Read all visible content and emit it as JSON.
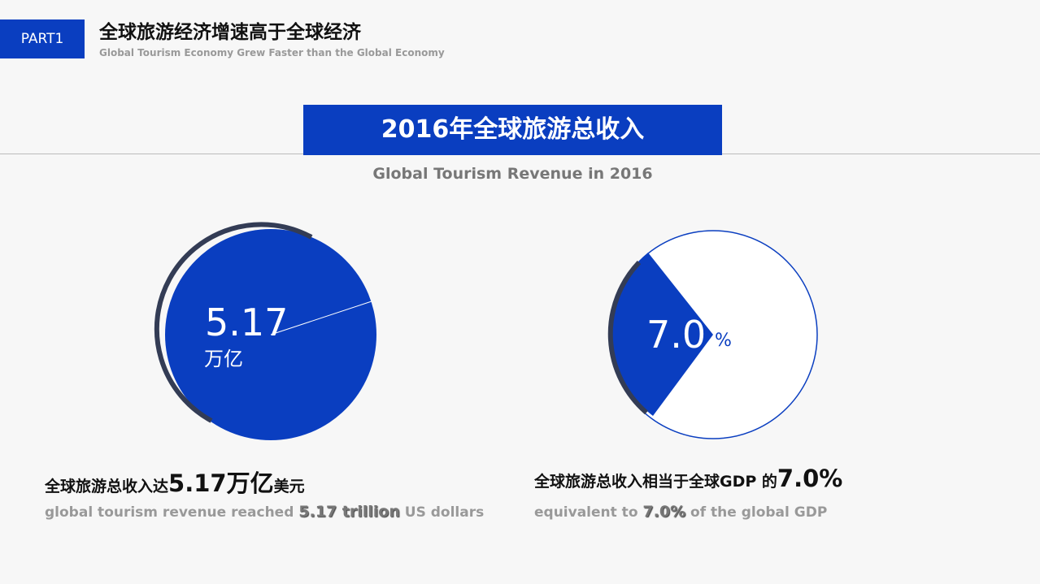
{
  "header": {
    "part": "PART1",
    "title": "全球旅游经济增速高于全球经济",
    "subtitle": "Global Tourism Economy Grew Faster than the Global Economy"
  },
  "banner": {
    "title": "2016年全球旅游总收入",
    "subtitle": "Global Tourism Revenue in 2016"
  },
  "left": {
    "big": "5.17",
    "unit": "万亿",
    "caption": [
      "全球旅游总收入达",
      "5.17万亿",
      "美元"
    ],
    "caption_en": [
      "global tourism revenue reached ",
      "5.17 trillion",
      " US dollars"
    ]
  },
  "right": {
    "big": "7.0",
    "unit": "%",
    "caption": [
      "全球旅游总收入相当于全球GDP 的",
      "7.0%"
    ],
    "caption_en": [
      "equivalent to ",
      "7.0%",
      " of the global GDP"
    ]
  }
}
